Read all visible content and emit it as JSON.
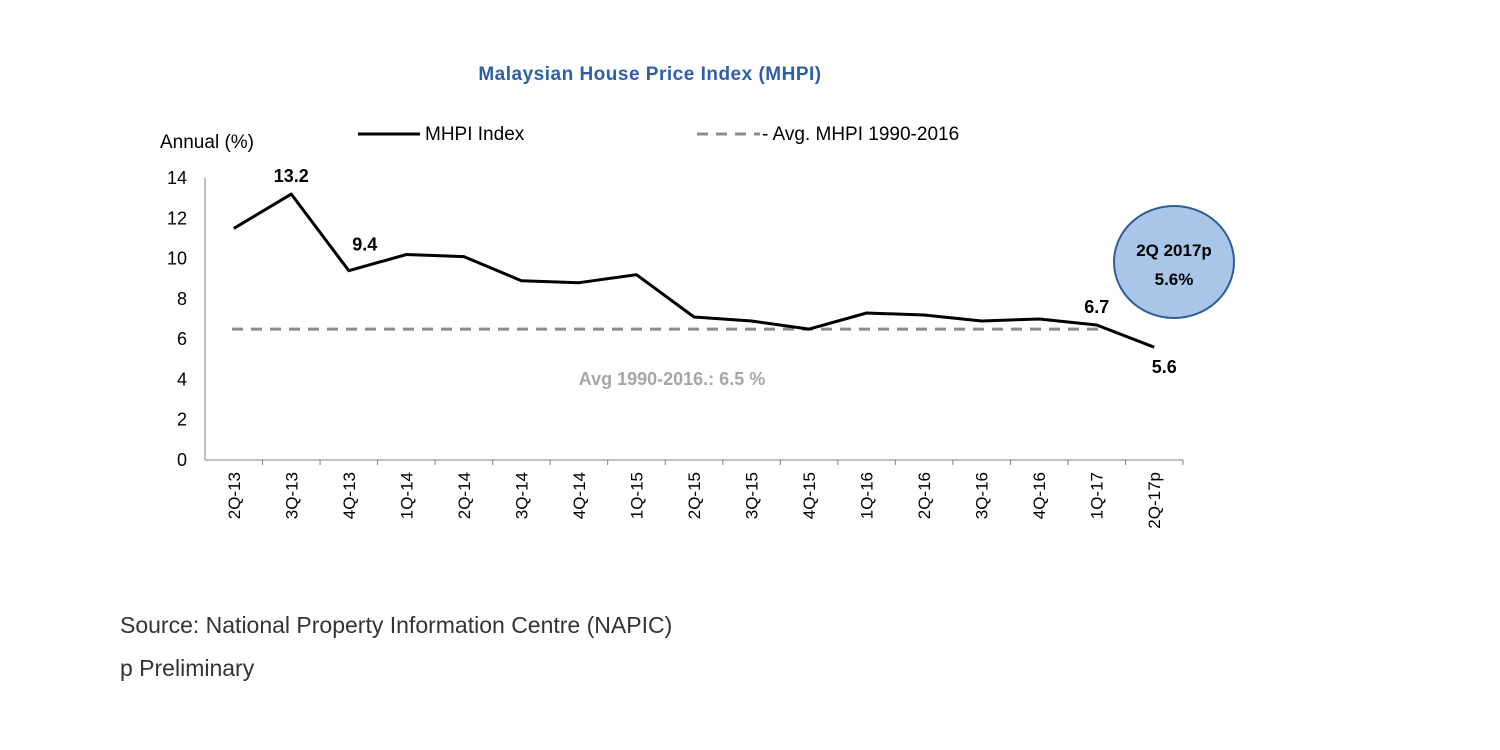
{
  "chart_data": {
    "type": "line",
    "title": "Malaysian  House  Price  Index  (MHPI)",
    "ylabel": "Annual  (%)",
    "ylim": [
      0,
      14
    ],
    "yticks": [
      0,
      2,
      4,
      6,
      8,
      10,
      12,
      14
    ],
    "grid": false,
    "legend_position": "top",
    "categories": [
      "2Q-13",
      "3Q-13",
      "4Q-13",
      "1Q-14",
      "2Q-14",
      "3Q-14",
      "4Q-14",
      "1Q-15",
      "2Q-15",
      "3Q-15",
      "4Q-15",
      "1Q-16",
      "2Q-16",
      "3Q-16",
      "4Q-16",
      "1Q-17",
      "2Q-17p"
    ],
    "series": [
      {
        "name": "MHPI Index",
        "style": "solid",
        "color": "#000000",
        "values": [
          11.5,
          13.2,
          9.4,
          10.2,
          10.1,
          8.9,
          8.8,
          9.2,
          7.1,
          6.9,
          6.5,
          7.3,
          7.2,
          6.9,
          7.0,
          6.7,
          5.6
        ]
      },
      {
        "name": "Avg. MHPI 1990-2016",
        "legend_text": "- Avg. MHPI 1990-2016",
        "style": "dashed",
        "color": "#8c8c8c",
        "value": 6.5
      }
    ],
    "data_labels": [
      {
        "index": 1,
        "text": "13.2"
      },
      {
        "index": 2,
        "text": "9.4"
      },
      {
        "index": 15,
        "text": "6.7"
      },
      {
        "index": 16,
        "text": "5.6"
      }
    ],
    "annotations": {
      "avg_label": "Avg 1990-2016.: 6.5 %",
      "callout_line1": "2Q 2017p",
      "callout_line2": "5.6%",
      "callout_color": "#a9c6e8",
      "callout_border": "#2e5d96"
    },
    "colors": {
      "title": "#2e5fa8",
      "axis": "#808080"
    }
  },
  "footnotes": {
    "source": "Source: National Property Information Centre (NAPIC)",
    "note": "p Preliminary"
  }
}
